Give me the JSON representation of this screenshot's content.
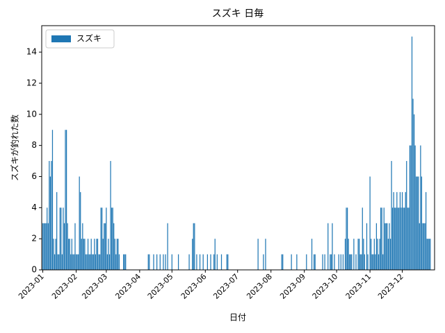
{
  "chart_data": {
    "type": "bar",
    "title": "スズキ 日毎",
    "xlabel": "日付",
    "ylabel": "スズキが釣れた数",
    "x": [
      "2023-01-01",
      "2023-01-02",
      "2023-01-03",
      "2023-01-04",
      "2023-01-05",
      "2023-01-06",
      "2023-01-07",
      "2023-01-08",
      "2023-01-09",
      "2023-01-10",
      "2023-01-11",
      "2023-01-12",
      "2023-01-13",
      "2023-01-14",
      "2023-01-15",
      "2023-01-16",
      "2023-01-17",
      "2023-01-18",
      "2023-01-19",
      "2023-01-20",
      "2023-01-21",
      "2023-01-22",
      "2023-01-23",
      "2023-01-24",
      "2023-01-25",
      "2023-01-26",
      "2023-01-27",
      "2023-01-28",
      "2023-01-29",
      "2023-01-30",
      "2023-01-31",
      "2023-02-01",
      "2023-02-02",
      "2023-02-03",
      "2023-02-04",
      "2023-02-05",
      "2023-02-06",
      "2023-02-07",
      "2023-02-08",
      "2023-02-09",
      "2023-02-10",
      "2023-02-11",
      "2023-02-12",
      "2023-02-13",
      "2023-02-14",
      "2023-02-15",
      "2023-02-16",
      "2023-02-17",
      "2023-02-18",
      "2023-02-19",
      "2023-02-20",
      "2023-02-21",
      "2023-02-22",
      "2023-02-23",
      "2023-02-24",
      "2023-02-25",
      "2023-02-26",
      "2023-02-27",
      "2023-02-28",
      "2023-03-01",
      "2023-03-02",
      "2023-03-03",
      "2023-03-04",
      "2023-03-05",
      "2023-03-06",
      "2023-03-07",
      "2023-03-08",
      "2023-03-09",
      "2023-03-10",
      "2023-03-11",
      "2023-03-12",
      "2023-03-13",
      "2023-03-17",
      "2023-03-18",
      "2023-03-19",
      "2023-04-09",
      "2023-04-10",
      "2023-04-14",
      "2023-04-17",
      "2023-04-20",
      "2023-04-23",
      "2023-04-25",
      "2023-04-27",
      "2023-05-01",
      "2023-05-07",
      "2023-05-17",
      "2023-05-20",
      "2023-05-21",
      "2023-05-22",
      "2023-05-24",
      "2023-05-27",
      "2023-05-30",
      "2023-06-03",
      "2023-06-06",
      "2023-06-09",
      "2023-06-10",
      "2023-06-12",
      "2023-06-16",
      "2023-06-21",
      "2023-06-22",
      "2023-07-20",
      "2023-07-25",
      "2023-07-27",
      "2023-08-11",
      "2023-08-12",
      "2023-08-20",
      "2023-08-25",
      "2023-09-03",
      "2023-09-08",
      "2023-09-10",
      "2023-09-11",
      "2023-09-18",
      "2023-09-20",
      "2023-09-23",
      "2023-09-25",
      "2023-09-26",
      "2023-09-27",
      "2023-09-29",
      "2023-10-03",
      "2023-10-05",
      "2023-10-07",
      "2023-10-09",
      "2023-10-10",
      "2023-10-11",
      "2023-10-12",
      "2023-10-13",
      "2023-10-14",
      "2023-10-15",
      "2023-10-17",
      "2023-10-19",
      "2023-10-21",
      "2023-10-22",
      "2023-10-23",
      "2023-10-24",
      "2023-10-25",
      "2023-10-26",
      "2023-10-27",
      "2023-10-29",
      "2023-10-30",
      "2023-11-01",
      "2023-11-02",
      "2023-11-03",
      "2023-11-04",
      "2023-11-05",
      "2023-11-06",
      "2023-11-07",
      "2023-11-08",
      "2023-11-09",
      "2023-11-10",
      "2023-11-11",
      "2023-11-12",
      "2023-11-13",
      "2023-11-14",
      "2023-11-15",
      "2023-11-16",
      "2023-11-17",
      "2023-11-18",
      "2023-11-19",
      "2023-11-20",
      "2023-11-21",
      "2023-11-22",
      "2023-11-23",
      "2023-11-24",
      "2023-11-25",
      "2023-11-26",
      "2023-11-27",
      "2023-11-28",
      "2023-11-29",
      "2023-11-30",
      "2023-12-01",
      "2023-12-02",
      "2023-12-03",
      "2023-12-04",
      "2023-12-05",
      "2023-12-06",
      "2023-12-07",
      "2023-12-08",
      "2023-12-09",
      "2023-12-10",
      "2023-12-11",
      "2023-12-12",
      "2023-12-13",
      "2023-12-14",
      "2023-12-15",
      "2023-12-16",
      "2023-12-17",
      "2023-12-18",
      "2023-12-19",
      "2023-12-20",
      "2023-12-21",
      "2023-12-22",
      "2023-12-23",
      "2023-12-24",
      "2023-12-25",
      "2023-12-26",
      "2023-12-27"
    ],
    "series": [
      {
        "name": "スズキ",
        "color": "#1f77b4",
        "values": [
          3,
          3,
          3,
          3,
          4,
          3,
          7,
          6,
          7,
          9,
          2,
          1,
          2,
          5,
          1,
          1,
          4,
          4,
          1,
          4,
          3,
          9,
          9,
          3,
          2,
          2,
          1,
          2,
          1,
          1,
          3,
          1,
          1,
          1,
          6,
          5,
          2,
          3,
          2,
          2,
          1,
          1,
          2,
          1,
          1,
          2,
          1,
          1,
          2,
          1,
          2,
          2,
          1,
          1,
          4,
          4,
          2,
          3,
          3,
          4,
          1,
          2,
          1,
          7,
          4,
          4,
          3,
          2,
          1,
          2,
          2,
          1,
          1,
          1,
          1,
          1,
          1,
          1,
          1,
          1,
          1,
          1,
          3,
          1,
          1,
          1,
          2,
          3,
          3,
          1,
          1,
          1,
          1,
          1,
          1,
          2,
          1,
          1,
          1,
          1,
          2,
          1,
          2,
          1,
          1,
          1,
          1,
          1,
          2,
          1,
          1,
          1,
          1,
          3,
          1,
          1,
          3,
          1,
          1,
          1,
          1,
          2,
          4,
          4,
          2,
          1,
          1,
          1,
          2,
          1,
          2,
          2,
          1,
          1,
          4,
          2,
          1,
          3,
          1,
          6,
          2,
          1,
          1,
          2,
          1,
          3,
          2,
          1,
          2,
          4,
          4,
          1,
          4,
          3,
          3,
          3,
          2,
          3,
          2,
          7,
          4,
          5,
          4,
          4,
          5,
          4,
          4,
          5,
          4,
          5,
          4,
          4,
          5,
          7,
          4,
          4,
          8,
          8,
          15,
          11,
          10,
          8,
          6,
          6,
          6,
          3,
          8,
          6,
          3,
          3,
          3,
          5,
          2,
          2,
          2,
          2
        ]
      }
    ],
    "xlim": [
      "2022-12-31",
      "2023-12-31"
    ],
    "xticks": [
      {
        "value": "2023-01-01",
        "label": "2023-01"
      },
      {
        "value": "2023-02-01",
        "label": "2023-02"
      },
      {
        "value": "2023-03-01",
        "label": "2023-03"
      },
      {
        "value": "2023-04-01",
        "label": "2023-04"
      },
      {
        "value": "2023-05-01",
        "label": "2023-05"
      },
      {
        "value": "2023-06-01",
        "label": "2023-06"
      },
      {
        "value": "2023-07-01",
        "label": "2023-07"
      },
      {
        "value": "2023-08-01",
        "label": "2023-08"
      },
      {
        "value": "2023-09-01",
        "label": "2023-09"
      },
      {
        "value": "2023-10-01",
        "label": "2023-10"
      },
      {
        "value": "2023-11-01",
        "label": "2023-11"
      },
      {
        "value": "2023-12-01",
        "label": "2023-12"
      }
    ],
    "ylim": [
      0,
      15.7
    ],
    "yticks": [
      0,
      2,
      4,
      6,
      8,
      10,
      12,
      14
    ],
    "legend": "upper left"
  }
}
